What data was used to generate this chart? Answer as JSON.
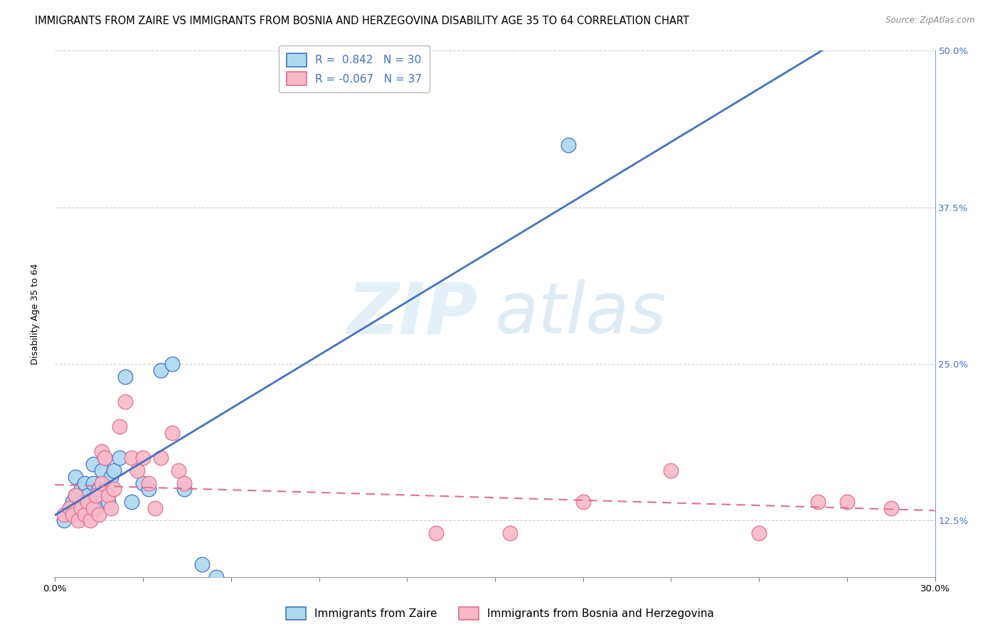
{
  "title": "IMMIGRANTS FROM ZAIRE VS IMMIGRANTS FROM BOSNIA AND HERZEGOVINA DISABILITY AGE 35 TO 64 CORRELATION CHART",
  "source": "Source: ZipAtlas.com",
  "xmin": 0.0,
  "xmax": 0.3,
  "ymin": 0.08,
  "ymax": 0.5,
  "ylabel": "Disability Age 35 to 64",
  "legend_entries": [
    {
      "label": "Immigrants from Zaire",
      "color": "#add8f0",
      "line_color": "#4472c4",
      "R": "0.842",
      "N": "30"
    },
    {
      "label": "Immigrants from Bosnia and Herzegovina",
      "color": "#f9b8c8",
      "line_color": "#e07090",
      "R": "-0.067",
      "N": "37"
    }
  ],
  "zaire_x": [
    0.003,
    0.005,
    0.006,
    0.007,
    0.007,
    0.008,
    0.009,
    0.01,
    0.011,
    0.012,
    0.013,
    0.013,
    0.014,
    0.015,
    0.016,
    0.017,
    0.018,
    0.019,
    0.02,
    0.022,
    0.024,
    0.026,
    0.03,
    0.032,
    0.036,
    0.04,
    0.044,
    0.05,
    0.055,
    0.175
  ],
  "zaire_y": [
    0.125,
    0.135,
    0.14,
    0.145,
    0.16,
    0.145,
    0.15,
    0.155,
    0.145,
    0.14,
    0.155,
    0.17,
    0.135,
    0.15,
    0.165,
    0.175,
    0.14,
    0.16,
    0.165,
    0.175,
    0.24,
    0.14,
    0.155,
    0.15,
    0.245,
    0.25,
    0.15,
    0.09,
    0.08,
    0.425
  ],
  "bosnia_x": [
    0.003,
    0.005,
    0.006,
    0.007,
    0.008,
    0.009,
    0.01,
    0.011,
    0.012,
    0.013,
    0.014,
    0.015,
    0.016,
    0.016,
    0.017,
    0.018,
    0.019,
    0.02,
    0.022,
    0.024,
    0.026,
    0.028,
    0.03,
    0.032,
    0.034,
    0.036,
    0.04,
    0.042,
    0.044,
    0.13,
    0.155,
    0.18,
    0.21,
    0.24,
    0.26,
    0.27,
    0.285
  ],
  "bosnia_y": [
    0.13,
    0.135,
    0.13,
    0.145,
    0.125,
    0.135,
    0.13,
    0.14,
    0.125,
    0.135,
    0.145,
    0.13,
    0.155,
    0.18,
    0.175,
    0.145,
    0.135,
    0.15,
    0.2,
    0.22,
    0.175,
    0.165,
    0.175,
    0.155,
    0.135,
    0.175,
    0.195,
    0.165,
    0.155,
    0.115,
    0.115,
    0.14,
    0.165,
    0.115,
    0.14,
    0.14,
    0.135
  ],
  "zaire_line_color": "#4472c4",
  "bosnia_line_color": "#e07090",
  "grid_color": "#cccccc",
  "background_color": "#ffffff",
  "title_fontsize": 10.5,
  "axis_label_fontsize": 9,
  "tick_fontsize": 9.5,
  "legend_fontsize": 11,
  "right_tick_color": "#4472c4"
}
